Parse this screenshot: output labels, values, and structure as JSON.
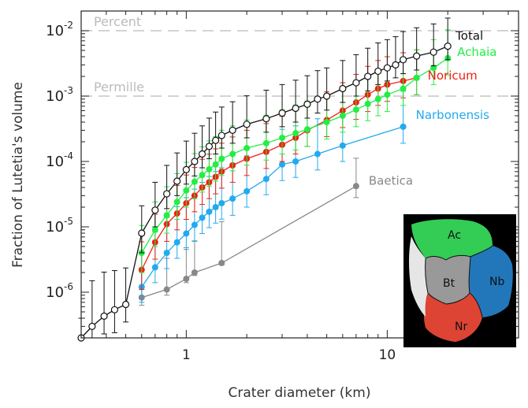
{
  "chart_data": {
    "type": "line",
    "xlabel": "Crater diameter (km)",
    "ylabel": "Fraction of Lutetia's volume",
    "xscale": "log",
    "yscale": "log",
    "xlim": [
      0.3,
      45
    ],
    "ylim": [
      2e-07,
      0.02
    ],
    "grid": false,
    "x_tick_labels": [
      {
        "value": 1,
        "label": "1"
      },
      {
        "value": 10,
        "label": "10"
      }
    ],
    "y_tick_labels": [
      {
        "value": 1e-06,
        "base": "10",
        "exp": "-6"
      },
      {
        "value": 1e-05,
        "base": "10",
        "exp": "-5"
      },
      {
        "value": 0.0001,
        "base": "10",
        "exp": "-4"
      },
      {
        "value": 0.001,
        "base": "10",
        "exp": "-3"
      },
      {
        "value": 0.01,
        "base": "10",
        "exp": "-2"
      }
    ],
    "reference_lines": [
      {
        "label": "Percent",
        "value": 0.01,
        "color": "#bbbbbb"
      },
      {
        "label": "Permille",
        "value": 0.001,
        "color": "#bbbbbb"
      }
    ],
    "series": [
      {
        "name": "Total",
        "color": "#111111",
        "marker": "open-circle",
        "x": [
          0.3,
          0.34,
          0.39,
          0.44,
          0.5,
          0.6,
          0.7,
          0.8,
          0.9,
          1.0,
          1.1,
          1.2,
          1.3,
          1.4,
          1.5,
          1.7,
          2.0,
          2.5,
          3.0,
          3.5,
          4.0,
          4.5,
          5.0,
          6.0,
          7.0,
          8.0,
          9.0,
          10.0,
          11.0,
          12.0,
          14.0,
          17.0,
          20.0
        ],
        "y": [
          2e-07,
          3e-07,
          4.3e-07,
          5.4e-07,
          6.5e-07,
          8e-06,
          1.8e-05,
          3.2e-05,
          5e-05,
          7.5e-05,
          0.0001,
          0.00013,
          0.00017,
          0.00021,
          0.00025,
          0.0003,
          0.00037,
          0.00045,
          0.00055,
          0.00065,
          0.00075,
          0.0009,
          0.001,
          0.0013,
          0.0016,
          0.002,
          0.0024,
          0.0027,
          0.003,
          0.0036,
          0.0041,
          0.0047,
          0.0058
        ],
        "err_low": [
          1e-08,
          1e-07,
          2e-07,
          3e-07,
          3e-07,
          4e-06,
          8e-06,
          1.3e-05,
          2e-05,
          3e-05,
          4e-05,
          5e-05,
          6e-05,
          8e-05,
          9e-05,
          0.00011,
          0.00014,
          0.00017,
          0.00021,
          0.00025,
          0.00029,
          0.00035,
          0.00039,
          0.0005,
          0.0006,
          0.0008,
          0.0009,
          0.001,
          0.0011,
          0.0014,
          0.0016,
          0.0018,
          0.0022
        ],
        "err_high": [
          2e-07,
          1.2e-06,
          1.6e-06,
          1.6e-06,
          1.7e-06,
          1.3e-05,
          3e-05,
          5.5e-05,
          8.5e-05,
          0.00013,
          0.00017,
          0.00022,
          0.00029,
          0.00036,
          0.00043,
          0.00052,
          0.00064,
          0.00078,
          0.00095,
          0.0011,
          0.0013,
          0.00155,
          0.0017,
          0.0022,
          0.0027,
          0.0034,
          0.0041,
          0.0046,
          0.0051,
          0.0061,
          0.007,
          0.008,
          0.0098
        ]
      },
      {
        "name": "Achaia",
        "color": "#22ee44",
        "marker": "filled-circle",
        "x": [
          0.6,
          0.7,
          0.8,
          0.9,
          1.0,
          1.1,
          1.2,
          1.3,
          1.4,
          1.5,
          1.7,
          2.0,
          2.5,
          3.0,
          3.5,
          4.0,
          5.0,
          6.0,
          7.0,
          8.0,
          9.0,
          10.0,
          12.0,
          14.0,
          17.0,
          20.0
        ],
        "y": [
          4e-06,
          9e-06,
          1.5e-05,
          2.4e-05,
          3.6e-05,
          4.9e-05,
          6.2e-05,
          7.6e-05,
          9e-05,
          0.00011,
          0.00013,
          0.00016,
          0.00019,
          0.00023,
          0.00027,
          0.00031,
          0.0004,
          0.0005,
          0.00062,
          0.00076,
          0.0009,
          0.00105,
          0.0013,
          0.0019,
          0.0027,
          0.0038
        ],
        "err_low": [
          2e-06,
          4e-06,
          7e-06,
          1.1e-05,
          1.6e-05,
          2.2e-05,
          2.8e-05,
          3.4e-05,
          4e-05,
          4.9e-05,
          5.8e-05,
          7.2e-05,
          8.5e-05,
          0.0001,
          0.00012,
          0.00014,
          0.00018,
          0.00022,
          0.00028,
          0.00034,
          0.0004,
          0.00047,
          0.00058,
          0.00085,
          0.0012,
          0.0017
        ],
        "err_high": [
          6.5e-06,
          1.5e-05,
          2.6e-05,
          4.1e-05,
          6.1e-05,
          8.3e-05,
          0.000105,
          0.00013,
          0.00015,
          0.00019,
          0.00022,
          0.00027,
          0.00032,
          0.00039,
          0.00046,
          0.00053,
          0.00068,
          0.00085,
          0.00105,
          0.0013,
          0.0015,
          0.0018,
          0.0022,
          0.0032,
          0.0046,
          0.0065
        ]
      },
      {
        "name": "Noricum",
        "color": "#ee2211",
        "marker": "filled-circle",
        "x": [
          0.6,
          0.7,
          0.8,
          0.9,
          1.0,
          1.1,
          1.2,
          1.3,
          1.4,
          1.5,
          1.7,
          2.0,
          2.5,
          3.0,
          3.5,
          4.0,
          5.0,
          6.0,
          7.0,
          8.0,
          9.0,
          10.0,
          12.0,
          14.0
        ],
        "y": [
          2.2e-06,
          5.8e-06,
          1.1e-05,
          1.6e-05,
          2.3e-05,
          3e-05,
          4e-05,
          4.8e-05,
          5.8e-05,
          7e-05,
          8.7e-05,
          0.00011,
          0.00014,
          0.00018,
          0.00023,
          0.0003,
          0.00043,
          0.0006,
          0.0008,
          0.00105,
          0.0013,
          0.0015,
          0.0017,
          0.0019
        ],
        "err_low": [
          1.1e-06,
          2.6e-06,
          5e-06,
          7e-06,
          1e-05,
          1.3e-05,
          1.8e-05,
          2.1e-05,
          2.6e-05,
          3.1e-05,
          3.9e-05,
          4.9e-05,
          6.2e-05,
          8e-05,
          0.0001,
          0.00013,
          0.00019,
          0.00027,
          0.00036,
          0.00047,
          0.00058,
          0.00067,
          0.00076,
          0.00085
        ],
        "err_high": [
          3.7e-06,
          9.8e-06,
          1.9e-05,
          2.7e-05,
          3.9e-05,
          5.1e-05,
          6.8e-05,
          8.1e-05,
          9.8e-05,
          0.00012,
          0.00015,
          0.00019,
          0.00024,
          0.00031,
          0.00039,
          0.00051,
          0.00073,
          0.001,
          0.00135,
          0.0018,
          0.0022,
          0.0025,
          0.0029,
          0.0032
        ]
      },
      {
        "name": "Narbonensis",
        "color": "#22aaee",
        "marker": "filled-circle",
        "x": [
          0.6,
          0.7,
          0.8,
          0.9,
          1.0,
          1.1,
          1.2,
          1.3,
          1.4,
          1.5,
          1.7,
          2.0,
          2.5,
          3.0,
          3.5,
          4.5,
          6.0,
          12.0
        ],
        "y": [
          1.2e-06,
          2.4e-06,
          4e-06,
          5.8e-06,
          7.9e-06,
          1.07e-05,
          1.38e-05,
          1.7e-05,
          2e-05,
          2.3e-05,
          2.7e-05,
          3.5e-05,
          5.4e-05,
          9e-05,
          0.0001,
          0.00013,
          0.000175,
          0.00034
        ],
        "err_low": [
          5e-07,
          1e-06,
          1.7e-06,
          2.5e-06,
          3.4e-06,
          4.6e-06,
          5.9e-06,
          7.3e-06,
          8.6e-06,
          9.9e-06,
          1.2e-05,
          1.5e-05,
          2.3e-05,
          3.9e-05,
          4.3e-05,
          5.6e-05,
          7.5e-05,
          0.00015
        ],
        "err_high": [
          3e-06,
          6e-06,
          1e-05,
          1.45e-05,
          2e-05,
          2.7e-05,
          3.4e-05,
          4.2e-05,
          5e-05,
          5.7e-05,
          6.7e-05,
          8.7e-05,
          0.000135,
          0.00022,
          0.00025,
          0.00032,
          0.00044,
          0.00085
        ]
      },
      {
        "name": "Baetica",
        "color": "#888888",
        "marker": "filled-circle",
        "x": [
          0.6,
          0.8,
          1.0,
          1.1,
          1.5,
          7.0
        ],
        "y": [
          8.3e-07,
          1.1e-06,
          1.6e-06,
          2e-06,
          2.8e-06,
          4.2e-05
        ],
        "err_low": [
          2e-07,
          2e-07,
          2e-07,
          2e-07,
          2e-07,
          1.4e-05
        ],
        "err_high": [
          1.5e-06,
          2.2e-06,
          3.2e-06,
          4e-06,
          9.2e-06,
          7e-05
        ]
      }
    ],
    "inset": {
      "regions": [
        {
          "label": "Ac",
          "color": "#33cc55"
        },
        {
          "label": "Bt",
          "color": "#999999"
        },
        {
          "label": "Nb",
          "color": "#2277bb"
        },
        {
          "label": "Nr",
          "color": "#dd4433"
        }
      ]
    }
  }
}
